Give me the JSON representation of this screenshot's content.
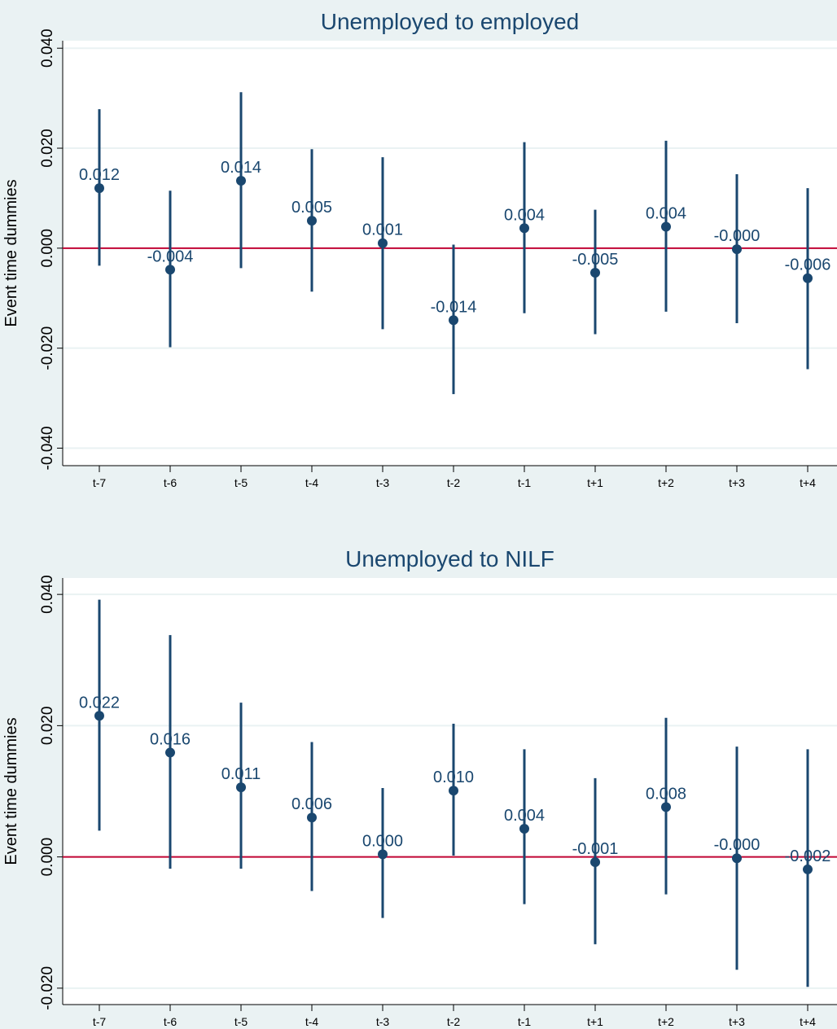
{
  "colors": {
    "background": "#eaf2f3",
    "plot_area": "#ffffff",
    "grid": "#eaf2f3",
    "marker": "#1a476f",
    "zero_line": "#c10534"
  },
  "chart_data": [
    {
      "type": "scatter",
      "title": "Unemployed to employed",
      "xlabel": "",
      "ylabel": "Event time dummies",
      "categories": [
        "t-7",
        "t-6",
        "t-5",
        "t-4",
        "t-3",
        "t-2",
        "t-1",
        "t+1",
        "t+2",
        "t+3",
        "t+4"
      ],
      "values": [
        0.012,
        -0.0043,
        0.0135,
        0.0055,
        0.001,
        -0.0144,
        0.004,
        -0.0049,
        0.0043,
        -0.0002,
        -0.006
      ],
      "ci_low": [
        -0.0035,
        -0.0198,
        -0.004,
        -0.0087,
        -0.0162,
        -0.0292,
        -0.013,
        -0.0172,
        -0.0127,
        -0.015,
        -0.0242
      ],
      "ci_high": [
        0.0278,
        0.0115,
        0.0312,
        0.0198,
        0.0182,
        0.0007,
        0.0212,
        0.0077,
        0.0215,
        0.0148,
        0.012
      ],
      "labels": [
        "0.012",
        "-0.004",
        "0.014",
        "0.005",
        "0.001",
        "-0.014",
        "0.004",
        "-0.005",
        "0.004",
        "-0.000",
        "-0.006"
      ],
      "yticks": [
        -0.04,
        -0.02,
        0,
        0.02,
        0.04
      ],
      "ytick_labels": [
        "-0.040",
        "-0.020",
        "0.000",
        "0.020",
        "0.040"
      ],
      "ylim": [
        -0.0435,
        0.0415
      ],
      "reference_line": 0,
      "grid": true
    },
    {
      "type": "scatter",
      "title": "Unemployed to NILF",
      "xlabel": "",
      "ylabel": "Event time dummies",
      "categories": [
        "t-7",
        "t-6",
        "t-5",
        "t-4",
        "t-3",
        "t-2",
        "t-1",
        "t+1",
        "t+2",
        "t+3",
        "t+4"
      ],
      "values": [
        0.0215,
        0.0159,
        0.0106,
        0.006,
        0.0004,
        0.0101,
        0.0043,
        -0.0008,
        0.0076,
        -0.0002,
        -0.0019
      ],
      "ci_low": [
        0.004,
        -0.0018,
        -0.0018,
        -0.0052,
        -0.0093,
        0.0002,
        -0.0072,
        -0.0133,
        -0.0057,
        -0.0172,
        -0.0198
      ],
      "ci_high": [
        0.0392,
        0.0338,
        0.0235,
        0.0175,
        0.0105,
        0.0203,
        0.0164,
        0.012,
        0.0212,
        0.0168,
        0.0164
      ],
      "labels": [
        "0.022",
        "0.016",
        "0.011",
        "0.006",
        "0.000",
        "0.010",
        "0.004",
        "-0.001",
        "0.008",
        "-0.000",
        "-0.002"
      ],
      "yticks": [
        -0.02,
        0,
        0.02,
        0.04
      ],
      "ytick_labels": [
        "-0.020",
        "0.000",
        "0.020",
        "0.040"
      ],
      "ylim": [
        -0.0225,
        0.0425
      ],
      "reference_line": 0,
      "grid": true
    }
  ]
}
